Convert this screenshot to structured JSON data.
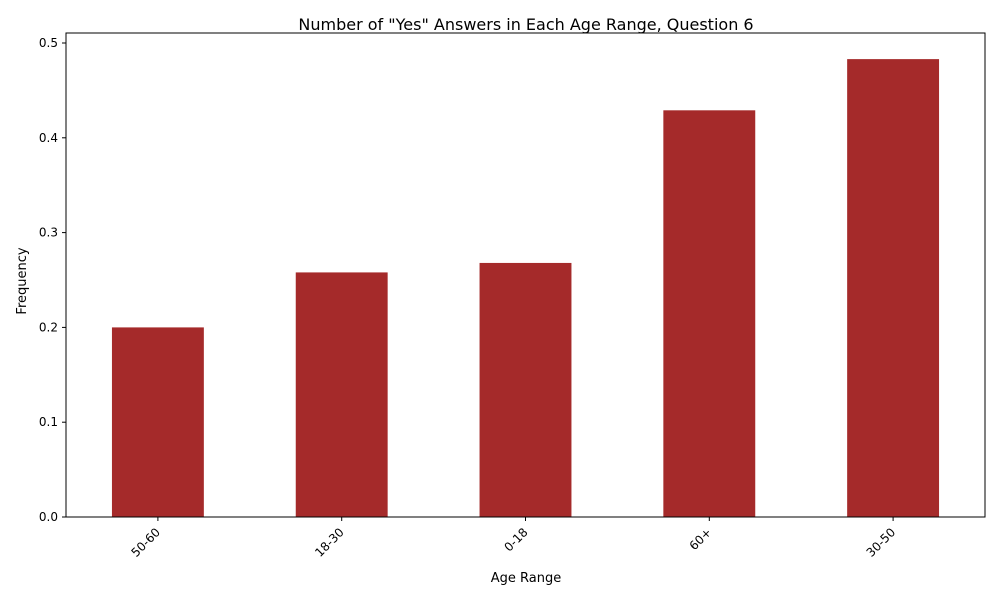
{
  "colors": {
    "bar": "#a52a2a",
    "axis": "#000000",
    "background": "#ffffff"
  },
  "chart_data": {
    "type": "bar",
    "title": "Number of \"Yes\" Answers in Each Age Range, Question 6",
    "xlabel": "Age Range",
    "ylabel": "Frequency",
    "categories": [
      "50-60",
      "18-30",
      "0-18",
      "60+",
      "30-50"
    ],
    "values": [
      0.2,
      0.258,
      0.268,
      0.429,
      0.483
    ],
    "ylim": [
      0,
      0.5
    ],
    "yticks": [
      "0.0",
      "0.1",
      "0.2",
      "0.3",
      "0.4",
      "0.5"
    ],
    "ytick_values": [
      0,
      0.1,
      0.2,
      0.3,
      0.4,
      0.5
    ],
    "grid": false,
    "legend": "none",
    "xtick_rotation_deg": 45
  }
}
